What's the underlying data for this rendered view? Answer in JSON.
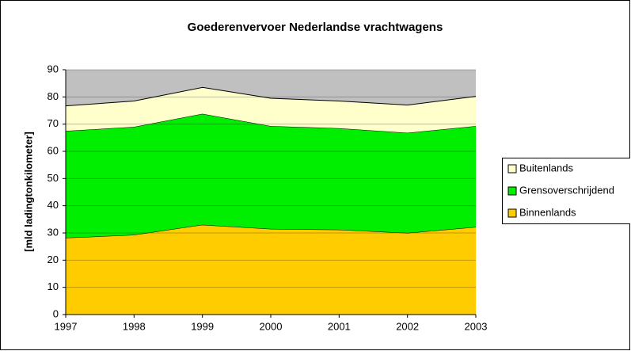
{
  "chart_data": {
    "type": "area",
    "stacked": true,
    "title": "Goederenvervoer Nederlandse vrachtwagens",
    "y_label": "[mld ladingtonkilometer]",
    "categories": [
      "1997",
      "1998",
      "1999",
      "2000",
      "2001",
      "2002",
      "2003"
    ],
    "series": [
      {
        "name": "Binnenlands",
        "color": "#ffcc00",
        "values": [
          28.2,
          29.3,
          33,
          31.5,
          31.2,
          30,
          32.2
        ]
      },
      {
        "name": "Grensoverschrijdend",
        "color": "#00ee00",
        "values": [
          39.3,
          39.7,
          40.8,
          37.8,
          37.3,
          36.8,
          37.1
        ]
      },
      {
        "name": "Buitenlands",
        "color": "#ffffcc",
        "values": [
          9.2,
          9.5,
          9.7,
          10.2,
          10,
          10.2,
          10.9
        ]
      }
    ],
    "ylim": [
      0,
      90
    ],
    "yticks": [
      0,
      10,
      20,
      30,
      40,
      50,
      60,
      70,
      80,
      90
    ],
    "grid": true,
    "legend": "right"
  }
}
